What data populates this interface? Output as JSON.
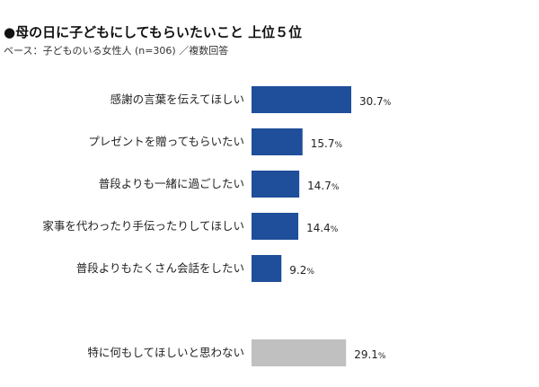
{
  "title": "●母の日に子どもにしてもらいたいこと 上位５位",
  "subtitle": "ベース：子どものいる女性人 (n=306) ／複数回答",
  "colors": {
    "primary_bar": "#1f4e9a",
    "other_bar": "#c0c0c0"
  },
  "chart_data": {
    "type": "bar",
    "orientation": "horizontal",
    "categories": [
      "感謝の言葉を伝えてほしい",
      "プレゼントを贈ってもらいたい",
      "普段よりも一緒に過ごしたい",
      "家事を代わったり手伝ったりしてほしい",
      "普段よりもたくさん会話をしたい",
      "特に何もしてほしいと思わない"
    ],
    "values": [
      30.7,
      15.7,
      14.7,
      14.4,
      9.2,
      29.1
    ],
    "value_suffix": "%",
    "highlight": [
      true,
      true,
      true,
      true,
      true,
      false
    ],
    "gap_before_index": 5,
    "xlim": [
      0,
      100
    ],
    "grid": false
  }
}
